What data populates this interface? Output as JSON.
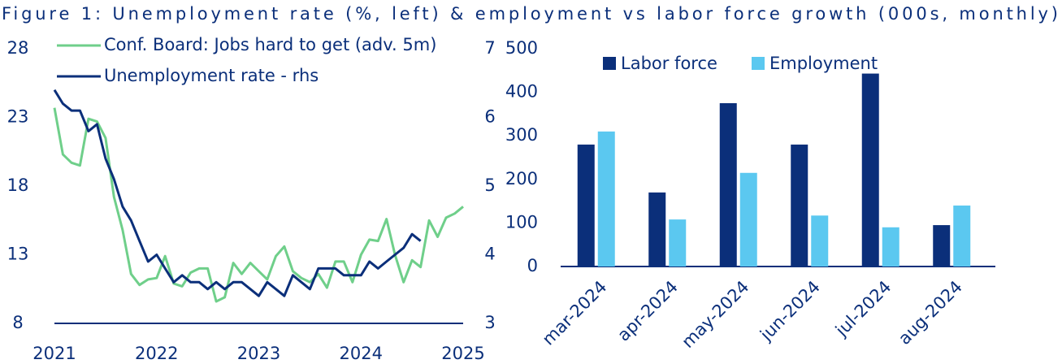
{
  "title": "Figure 1: Unemployment rate (%, left) & employment vs labor force growth (000s, monthly)",
  "chart_data": [
    {
      "type": "line",
      "xlim": [
        2021,
        2025
      ],
      "xticks": [
        2021,
        2022,
        2023,
        2024,
        2025
      ],
      "ylim": [
        8,
        28
      ],
      "yticks": [
        8,
        13,
        18,
        23,
        28
      ],
      "y2lim": [
        3,
        7
      ],
      "y2ticks": [
        3,
        4,
        5,
        6,
        7
      ],
      "series": [
        {
          "name": "Conf. Board: Jobs hard to get (adv. 5m)",
          "color": "#6fcf8a",
          "x": [
            2021,
            2021.083,
            2021.167,
            2021.25,
            2021.333,
            2021.417,
            2021.5,
            2021.583,
            2021.667,
            2021.75,
            2021.833,
            2021.917,
            2022,
            2022.083,
            2022.167,
            2022.25,
            2022.333,
            2022.417,
            2022.5,
            2022.583,
            2022.667,
            2022.75,
            2022.833,
            2022.917,
            2023,
            2023.083,
            2023.167,
            2023.25,
            2023.333,
            2023.417,
            2023.5,
            2023.583,
            2023.667,
            2023.75,
            2023.833,
            2023.917,
            2024,
            2024.083,
            2024.167,
            2024.25,
            2024.333,
            2024.417,
            2024.5,
            2024.583,
            2024.667,
            2024.75,
            2024.833,
            2024.917,
            2025
          ],
          "values": [
            23.7,
            20.3,
            19.7,
            19.5,
            22.9,
            22.7,
            21.5,
            17.2,
            14.8,
            11.6,
            10.8,
            11.2,
            11.3,
            12.9,
            10.9,
            10.7,
            11.7,
            12.0,
            12.0,
            9.6,
            9.9,
            12.4,
            11.6,
            12.4,
            11.8,
            11.2,
            12.9,
            13.6,
            11.8,
            11.3,
            11.0,
            11.6,
            10.6,
            12.5,
            12.5,
            11.0,
            13.0,
            14.1,
            14.0,
            15.6,
            13.0,
            11.0,
            12.6,
            12.1,
            15.5,
            14.3,
            15.7,
            16.0,
            16.5
          ]
        },
        {
          "name": "Unemployment rate - rhs",
          "color": "#0b2f7a",
          "axis": "y2",
          "x": [
            2021,
            2021.083,
            2021.167,
            2021.25,
            2021.333,
            2021.417,
            2021.5,
            2021.583,
            2021.667,
            2021.75,
            2021.833,
            2021.917,
            2022,
            2022.083,
            2022.167,
            2022.25,
            2022.333,
            2022.417,
            2022.5,
            2022.583,
            2022.667,
            2022.75,
            2022.833,
            2022.917,
            2023,
            2023.083,
            2023.167,
            2023.25,
            2023.333,
            2023.417,
            2023.5,
            2023.583,
            2023.667,
            2023.75,
            2023.833,
            2023.917,
            2024,
            2024.083,
            2024.167,
            2024.25,
            2024.333,
            2024.417,
            2024.5,
            2024.583
          ],
          "values": [
            6.4,
            6.2,
            6.1,
            6.1,
            5.8,
            5.9,
            5.4,
            5.1,
            4.7,
            4.5,
            4.2,
            3.9,
            4.0,
            3.8,
            3.6,
            3.7,
            3.6,
            3.6,
            3.5,
            3.6,
            3.5,
            3.6,
            3.6,
            3.5,
            3.4,
            3.6,
            3.5,
            3.4,
            3.7,
            3.6,
            3.5,
            3.8,
            3.8,
            3.8,
            3.7,
            3.7,
            3.7,
            3.9,
            3.8,
            3.9,
            4.0,
            4.1,
            4.3,
            4.2
          ]
        }
      ]
    },
    {
      "type": "bar",
      "categories": [
        "mar-2024",
        "apr-2024",
        "may-2024",
        "jun-2024",
        "jul-2024",
        "aug-2024"
      ],
      "ylim": [
        0,
        500
      ],
      "yticks": [
        0,
        100,
        200,
        300,
        400,
        500
      ],
      "series": [
        {
          "name": "Labor force",
          "color": "#0b2f7a",
          "values": [
            280,
            170,
            375,
            280,
            443,
            95
          ]
        },
        {
          "name": "Employment",
          "color": "#5bc8f0",
          "values": [
            310,
            108,
            215,
            117,
            90,
            140
          ]
        }
      ]
    }
  ]
}
